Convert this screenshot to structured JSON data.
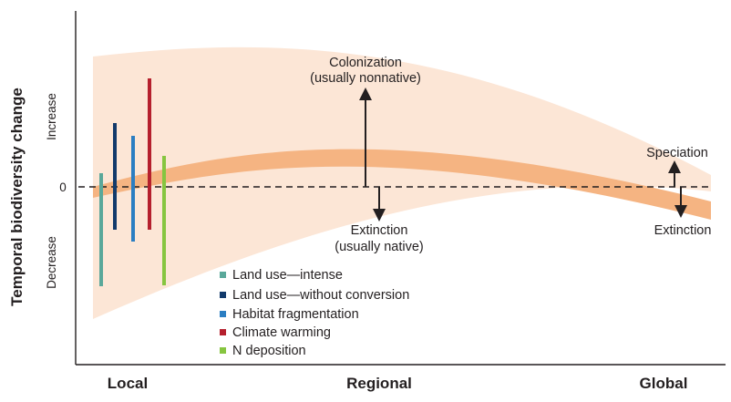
{
  "figure": {
    "y_axis_label": "Temporal biodiversity change",
    "y_ticks": {
      "increase": "Increase",
      "zero": "0",
      "decrease": "Decrease"
    },
    "x_categories": [
      "Local",
      "Regional",
      "Global"
    ],
    "annotations": {
      "colonization_line1": "Colonization",
      "colonization_line2": "(usually nonnative)",
      "extinction_regional_line1": "Extinction",
      "extinction_regional_line2": "(usually native)",
      "speciation": "Speciation",
      "extinction_global": "Extinction"
    },
    "legend": [
      {
        "label": "Land use—intense",
        "color": "#5aa89a"
      },
      {
        "label": "Land use—without conversion",
        "color": "#123a6b"
      },
      {
        "label": "Habitat fragmentation",
        "color": "#2b7ec2"
      },
      {
        "label": "Climate warming",
        "color": "#b5202e"
      },
      {
        "label": "N deposition",
        "color": "#86c540"
      }
    ],
    "colors": {
      "outer_band": "#fce6d6",
      "inner_band": "#f5b482",
      "axis": "#231f20"
    }
  }
}
